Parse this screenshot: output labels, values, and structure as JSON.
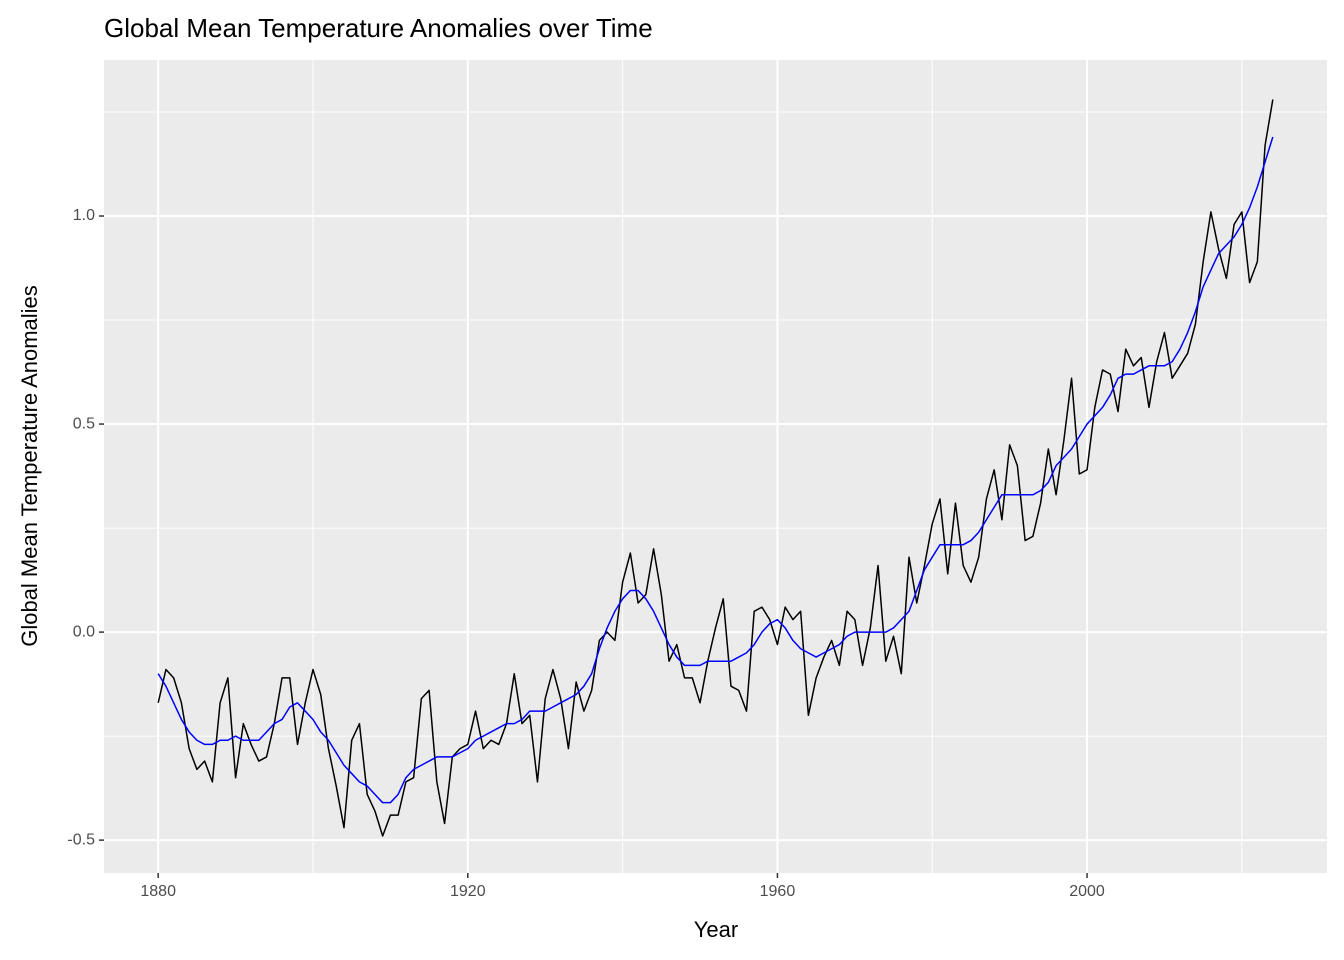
{
  "chart_data": {
    "type": "line",
    "title": "Global Mean Temperature Anomalies over Time",
    "x_label": "Year",
    "y_label": "Global Mean Temperature Anomalies",
    "x": [
      1880,
      1881,
      1882,
      1883,
      1884,
      1885,
      1886,
      1887,
      1888,
      1889,
      1890,
      1891,
      1892,
      1893,
      1894,
      1895,
      1896,
      1897,
      1898,
      1899,
      1900,
      1901,
      1902,
      1903,
      1904,
      1905,
      1906,
      1907,
      1908,
      1909,
      1910,
      1911,
      1912,
      1913,
      1914,
      1915,
      1916,
      1917,
      1918,
      1919,
      1920,
      1921,
      1922,
      1923,
      1924,
      1925,
      1926,
      1927,
      1928,
      1929,
      1930,
      1931,
      1932,
      1933,
      1934,
      1935,
      1936,
      1937,
      1938,
      1939,
      1940,
      1941,
      1942,
      1943,
      1944,
      1945,
      1946,
      1947,
      1948,
      1949,
      1950,
      1951,
      1952,
      1953,
      1954,
      1955,
      1956,
      1957,
      1958,
      1959,
      1960,
      1961,
      1962,
      1963,
      1964,
      1965,
      1966,
      1967,
      1968,
      1969,
      1970,
      1971,
      1972,
      1973,
      1974,
      1975,
      1976,
      1977,
      1978,
      1979,
      1980,
      1981,
      1982,
      1983,
      1984,
      1985,
      1986,
      1987,
      1988,
      1989,
      1990,
      1991,
      1992,
      1993,
      1994,
      1995,
      1996,
      1997,
      1998,
      1999,
      2000,
      2001,
      2002,
      2003,
      2004,
      2005,
      2006,
      2007,
      2008,
      2009,
      2010,
      2011,
      2012,
      2013,
      2014,
      2015,
      2016,
      2017,
      2018,
      2019,
      2020,
      2021,
      2022,
      2023,
      2024
    ],
    "series": [
      {
        "color": "#000000",
        "values": [
          -0.17,
          -0.09,
          -0.11,
          -0.17,
          -0.28,
          -0.33,
          -0.31,
          -0.36,
          -0.17,
          -0.11,
          -0.35,
          -0.22,
          -0.27,
          -0.31,
          -0.3,
          -0.22,
          -0.11,
          -0.11,
          -0.27,
          -0.17,
          -0.09,
          -0.15,
          -0.28,
          -0.37,
          -0.47,
          -0.26,
          -0.22,
          -0.39,
          -0.43,
          -0.49,
          -0.44,
          -0.44,
          -0.36,
          -0.35,
          -0.16,
          -0.14,
          -0.36,
          -0.46,
          -0.3,
          -0.28,
          -0.27,
          -0.19,
          -0.28,
          -0.26,
          -0.27,
          -0.22,
          -0.1,
          -0.22,
          -0.2,
          -0.36,
          -0.16,
          -0.09,
          -0.16,
          -0.28,
          -0.12,
          -0.19,
          -0.14,
          -0.02,
          0.0,
          -0.02,
          0.12,
          0.19,
          0.07,
          0.09,
          0.2,
          0.09,
          -0.07,
          -0.03,
          -0.11,
          -0.11,
          -0.17,
          -0.07,
          0.01,
          0.08,
          -0.13,
          -0.14,
          -0.19,
          0.05,
          0.06,
          0.03,
          -0.03,
          0.06,
          0.03,
          0.05,
          -0.2,
          -0.11,
          -0.06,
          -0.02,
          -0.08,
          0.05,
          0.03,
          -0.08,
          0.01,
          0.16,
          -0.07,
          -0.01,
          -0.1,
          0.18,
          0.07,
          0.16,
          0.26,
          0.32,
          0.14,
          0.31,
          0.16,
          0.12,
          0.18,
          0.32,
          0.39,
          0.27,
          0.45,
          0.4,
          0.22,
          0.23,
          0.31,
          0.44,
          0.33,
          0.46,
          0.61,
          0.38,
          0.39,
          0.54,
          0.63,
          0.62,
          0.53,
          0.68,
          0.64,
          0.66,
          0.54,
          0.65,
          0.72,
          0.61,
          0.64,
          0.67,
          0.74,
          0.89,
          1.01,
          0.92,
          0.85,
          0.98,
          1.01,
          0.84,
          0.89,
          1.17,
          1.28
        ]
      },
      {
        "color": "#0000ff",
        "values": [
          -0.1,
          -0.13,
          -0.17,
          -0.21,
          -0.24,
          -0.26,
          -0.27,
          -0.27,
          -0.26,
          -0.26,
          -0.25,
          -0.26,
          -0.26,
          -0.26,
          -0.24,
          -0.22,
          -0.21,
          -0.18,
          -0.17,
          -0.19,
          -0.21,
          -0.24,
          -0.26,
          -0.29,
          -0.32,
          -0.34,
          -0.36,
          -0.37,
          -0.39,
          -0.41,
          -0.41,
          -0.39,
          -0.35,
          -0.33,
          -0.32,
          -0.31,
          -0.3,
          -0.3,
          -0.3,
          -0.29,
          -0.28,
          -0.26,
          -0.25,
          -0.24,
          -0.23,
          -0.22,
          -0.22,
          -0.21,
          -0.19,
          -0.19,
          -0.19,
          -0.18,
          -0.17,
          -0.16,
          -0.15,
          -0.13,
          -0.1,
          -0.04,
          0.01,
          0.05,
          0.08,
          0.1,
          0.1,
          0.08,
          0.05,
          0.01,
          -0.03,
          -0.06,
          -0.08,
          -0.08,
          -0.08,
          -0.07,
          -0.07,
          -0.07,
          -0.07,
          -0.06,
          -0.05,
          -0.03,
          0.0,
          0.02,
          0.03,
          0.01,
          -0.02,
          -0.04,
          -0.05,
          -0.06,
          -0.05,
          -0.04,
          -0.03,
          -0.01,
          0.0,
          0.0,
          0.0,
          0.0,
          0.0,
          0.01,
          0.03,
          0.05,
          0.1,
          0.15,
          0.18,
          0.21,
          0.21,
          0.21,
          0.21,
          0.22,
          0.24,
          0.27,
          0.3,
          0.33,
          0.33,
          0.33,
          0.33,
          0.33,
          0.34,
          0.36,
          0.4,
          0.42,
          0.44,
          0.47,
          0.5,
          0.52,
          0.54,
          0.57,
          0.61,
          0.62,
          0.62,
          0.63,
          0.64,
          0.64,
          0.64,
          0.65,
          0.68,
          0.72,
          0.77,
          0.83,
          0.87,
          0.91,
          0.93,
          0.95,
          0.98,
          1.02,
          1.07,
          1.13,
          1.19
        ]
      }
    ],
    "xlim": [
      1873,
      2031
    ],
    "ylim": [
      -0.579,
      1.375
    ],
    "xticks": [
      1880,
      1920,
      1960,
      2000
    ],
    "yticks": [
      -0.5,
      {
        "value": 0,
        "label": "0.0"
      },
      0.5,
      {
        "value": 1,
        "label": "1.0"
      }
    ],
    "grid": true
  }
}
